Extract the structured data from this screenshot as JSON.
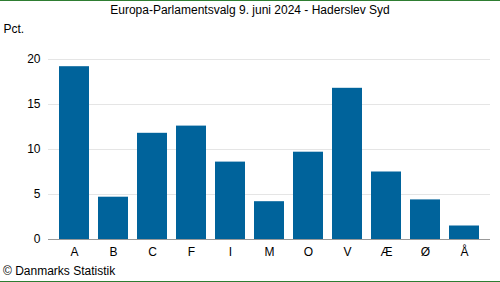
{
  "chart_data": {
    "type": "bar",
    "title": "Europa-Parlamentsvalg 9. juni 2024 - Haderslev Syd",
    "y_label": "Pct.",
    "caption": "© Danmarks Statistik",
    "categories": [
      "A",
      "B",
      "C",
      "F",
      "I",
      "M",
      "O",
      "V",
      "Æ",
      "Ø",
      "Å"
    ],
    "values": [
      19.2,
      4.7,
      11.8,
      12.6,
      8.6,
      4.2,
      9.7,
      16.8,
      7.5,
      4.4,
      1.5
    ],
    "color": "#00639b",
    "ylim": [
      0,
      20
    ],
    "yticks": [
      0,
      5,
      10,
      15,
      20
    ],
    "grid": true
  }
}
